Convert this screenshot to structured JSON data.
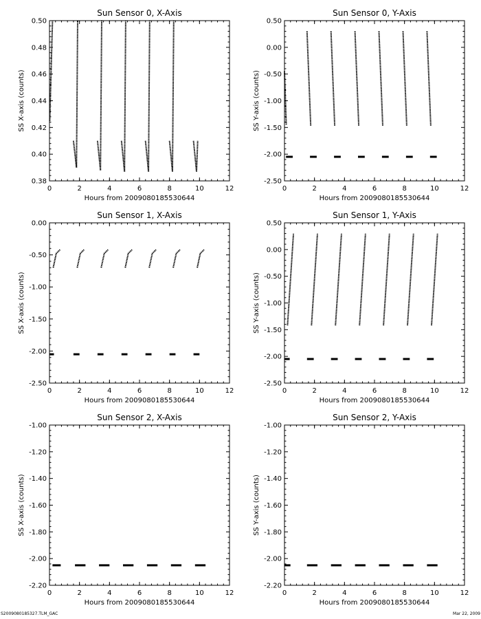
{
  "footer": {
    "left": "S2009080185327.TLM_GAC",
    "right": "Mar 22, 2009"
  },
  "chart_data": [
    {
      "type": "scatter",
      "title": "Sun Sensor 0, X-Axis",
      "xlabel": "Hours from 2009080185530644",
      "ylabel": "SS X-axis (counts)",
      "xlim": [
        0,
        12
      ],
      "ylim": [
        0.38,
        0.5
      ],
      "xticks": [
        0,
        2,
        4,
        6,
        8,
        10,
        12
      ],
      "yticks": [
        0.38,
        0.4,
        0.42,
        0.44,
        0.46,
        0.48,
        0.5
      ],
      "ytick_labels": [
        "0.38",
        "0.40",
        "0.42",
        "0.44",
        "0.46",
        "0.48",
        "0.50"
      ],
      "series": [
        {
          "x": [
            0.02,
            0.2
          ],
          "y": [
            0.425,
            0.5
          ]
        },
        {
          "x": [
            1.6,
            1.8
          ],
          "y": [
            0.41,
            0.39
          ]
        },
        {
          "x": [
            1.8,
            1.88
          ],
          "y": [
            0.39,
            0.5
          ]
        },
        {
          "x": [
            3.2,
            3.4
          ],
          "y": [
            0.41,
            0.388
          ]
        },
        {
          "x": [
            3.4,
            3.48
          ],
          "y": [
            0.388,
            0.5
          ]
        },
        {
          "x": [
            4.8,
            5.0
          ],
          "y": [
            0.41,
            0.387
          ]
        },
        {
          "x": [
            5.0,
            5.08
          ],
          "y": [
            0.387,
            0.5
          ]
        },
        {
          "x": [
            6.4,
            6.6
          ],
          "y": [
            0.41,
            0.387
          ]
        },
        {
          "x": [
            6.6,
            6.68
          ],
          "y": [
            0.387,
            0.5
          ]
        },
        {
          "x": [
            8.0,
            8.2
          ],
          "y": [
            0.41,
            0.387
          ]
        },
        {
          "x": [
            8.2,
            8.28
          ],
          "y": [
            0.387,
            0.5
          ]
        },
        {
          "x": [
            9.6,
            9.8
          ],
          "y": [
            0.41,
            0.387
          ]
        },
        {
          "x": [
            9.8,
            9.88
          ],
          "y": [
            0.387,
            0.41
          ]
        }
      ]
    },
    {
      "type": "scatter",
      "title": "Sun Sensor 0, Y-Axis",
      "xlabel": "Hours from 2009080185530644",
      "ylabel": "SS Y-axis (counts)",
      "xlim": [
        0,
        12
      ],
      "ylim": [
        -2.5,
        0.5
      ],
      "xticks": [
        0,
        2,
        4,
        6,
        8,
        10,
        12
      ],
      "yticks": [
        -2.5,
        -2.0,
        -1.5,
        -1.0,
        -0.5,
        0.0,
        0.5
      ],
      "ytick_labels": [
        "-2.50",
        "-2.00",
        "-1.50",
        "-1.00",
        "-0.50",
        "0.00",
        "0.50"
      ],
      "series": [
        {
          "x": [
            0.0,
            0.12
          ],
          "y": [
            -0.45,
            -1.45
          ]
        },
        {
          "x": [
            1.5,
            1.75
          ],
          "y": [
            0.3,
            -1.47
          ]
        },
        {
          "x": [
            3.1,
            3.35
          ],
          "y": [
            0.3,
            -1.47
          ]
        },
        {
          "x": [
            4.7,
            4.95
          ],
          "y": [
            0.3,
            -1.47
          ]
        },
        {
          "x": [
            6.3,
            6.55
          ],
          "y": [
            0.3,
            -1.47
          ]
        },
        {
          "x": [
            7.9,
            8.15
          ],
          "y": [
            0.3,
            -1.47
          ]
        },
        {
          "x": [
            9.5,
            9.75
          ],
          "y": [
            0.3,
            -1.47
          ]
        },
        {
          "x": [
            0.1,
            0.55
          ],
          "y": [
            -2.05,
            -2.05
          ]
        },
        {
          "x": [
            1.7,
            2.15
          ],
          "y": [
            -2.05,
            -2.05
          ]
        },
        {
          "x": [
            3.3,
            3.75
          ],
          "y": [
            -2.05,
            -2.05
          ]
        },
        {
          "x": [
            4.9,
            5.35
          ],
          "y": [
            -2.05,
            -2.05
          ]
        },
        {
          "x": [
            6.5,
            6.95
          ],
          "y": [
            -2.05,
            -2.05
          ]
        },
        {
          "x": [
            8.1,
            8.55
          ],
          "y": [
            -2.05,
            -2.05
          ]
        },
        {
          "x": [
            9.7,
            10.15
          ],
          "y": [
            -2.05,
            -2.05
          ]
        }
      ]
    },
    {
      "type": "scatter",
      "title": "Sun Sensor 1, X-Axis",
      "xlabel": "Hours from 2009080185530644",
      "ylabel": "SS X-axis (counts)",
      "xlim": [
        0,
        12
      ],
      "ylim": [
        -2.5,
        0.0
      ],
      "xticks": [
        0,
        2,
        4,
        6,
        8,
        10,
        12
      ],
      "yticks": [
        -2.5,
        -2.0,
        -1.5,
        -1.0,
        -0.5,
        0.0
      ],
      "ytick_labels": [
        "-2.50",
        "-2.00",
        "-1.50",
        "-1.00",
        "-0.50",
        "0.00"
      ],
      "series": [
        {
          "x": [
            0.25,
            0.45,
            0.7
          ],
          "y": [
            -0.7,
            -0.48,
            -0.42
          ]
        },
        {
          "x": [
            1.85,
            2.05,
            2.3
          ],
          "y": [
            -0.7,
            -0.48,
            -0.42
          ]
        },
        {
          "x": [
            3.45,
            3.65,
            3.9
          ],
          "y": [
            -0.7,
            -0.48,
            -0.42
          ]
        },
        {
          "x": [
            5.05,
            5.25,
            5.5
          ],
          "y": [
            -0.7,
            -0.48,
            -0.42
          ]
        },
        {
          "x": [
            6.65,
            6.85,
            7.1
          ],
          "y": [
            -0.7,
            -0.48,
            -0.42
          ]
        },
        {
          "x": [
            8.25,
            8.45,
            8.7
          ],
          "y": [
            -0.7,
            -0.48,
            -0.42
          ]
        },
        {
          "x": [
            9.85,
            10.05,
            10.3
          ],
          "y": [
            -0.7,
            -0.48,
            -0.42
          ]
        },
        {
          "x": [
            0.0,
            0.3
          ],
          "y": [
            -2.05,
            -2.05
          ]
        },
        {
          "x": [
            1.6,
            2.0
          ],
          "y": [
            -2.05,
            -2.05
          ]
        },
        {
          "x": [
            3.2,
            3.6
          ],
          "y": [
            -2.05,
            -2.05
          ]
        },
        {
          "x": [
            4.8,
            5.2
          ],
          "y": [
            -2.05,
            -2.05
          ]
        },
        {
          "x": [
            6.4,
            6.8
          ],
          "y": [
            -2.05,
            -2.05
          ]
        },
        {
          "x": [
            8.0,
            8.4
          ],
          "y": [
            -2.05,
            -2.05
          ]
        },
        {
          "x": [
            9.6,
            10.0
          ],
          "y": [
            -2.05,
            -2.05
          ]
        }
      ]
    },
    {
      "type": "scatter",
      "title": "Sun Sensor 1, Y-Axis",
      "xlabel": "Hours from 2009080185530644",
      "ylabel": "SS Y-axis (counts)",
      "xlim": [
        0,
        12
      ],
      "ylim": [
        -2.5,
        0.5
      ],
      "xticks": [
        0,
        2,
        4,
        6,
        8,
        10,
        12
      ],
      "yticks": [
        -2.5,
        -2.0,
        -1.5,
        -1.0,
        -0.5,
        0.0,
        0.5
      ],
      "ytick_labels": [
        "-2.50",
        "-2.00",
        "-1.50",
        "-1.00",
        "-0.50",
        "0.00",
        "0.50"
      ],
      "series": [
        {
          "x": [
            0.2,
            0.6
          ],
          "y": [
            -1.42,
            0.3
          ]
        },
        {
          "x": [
            1.8,
            2.2
          ],
          "y": [
            -1.42,
            0.3
          ]
        },
        {
          "x": [
            3.4,
            3.8
          ],
          "y": [
            -1.42,
            0.3
          ]
        },
        {
          "x": [
            5.0,
            5.4
          ],
          "y": [
            -1.42,
            0.3
          ]
        },
        {
          "x": [
            6.6,
            7.0
          ],
          "y": [
            -1.42,
            0.3
          ]
        },
        {
          "x": [
            8.2,
            8.6
          ],
          "y": [
            -1.42,
            0.3
          ]
        },
        {
          "x": [
            9.8,
            10.2
          ],
          "y": [
            -1.42,
            0.3
          ]
        },
        {
          "x": [
            0.0,
            0.35
          ],
          "y": [
            -2.05,
            -2.05
          ]
        },
        {
          "x": [
            1.5,
            1.95
          ],
          "y": [
            -2.05,
            -2.05
          ]
        },
        {
          "x": [
            3.1,
            3.55
          ],
          "y": [
            -2.05,
            -2.05
          ]
        },
        {
          "x": [
            4.7,
            5.15
          ],
          "y": [
            -2.05,
            -2.05
          ]
        },
        {
          "x": [
            6.3,
            6.75
          ],
          "y": [
            -2.05,
            -2.05
          ]
        },
        {
          "x": [
            7.9,
            8.35
          ],
          "y": [
            -2.05,
            -2.05
          ]
        },
        {
          "x": [
            9.5,
            9.95
          ],
          "y": [
            -2.05,
            -2.05
          ]
        }
      ]
    },
    {
      "type": "scatter",
      "title": "Sun Sensor 2, X-Axis",
      "xlabel": "Hours from 2009080185530644",
      "ylabel": "SS X-axis (counts)",
      "xlim": [
        0,
        12
      ],
      "ylim": [
        -2.2,
        -1.0
      ],
      "xticks": [
        0,
        2,
        4,
        6,
        8,
        10,
        12
      ],
      "yticks": [
        -2.2,
        -2.0,
        -1.8,
        -1.6,
        -1.4,
        -1.2,
        -1.0
      ],
      "ytick_labels": [
        "-2.20",
        "-2.00",
        "-1.80",
        "-1.60",
        "-1.40",
        "-1.20",
        "-1.00"
      ],
      "series": [
        {
          "x": [
            0.2,
            0.75
          ],
          "y": [
            -2.05,
            -2.05
          ]
        },
        {
          "x": [
            1.7,
            2.4
          ],
          "y": [
            -2.05,
            -2.05
          ]
        },
        {
          "x": [
            3.3,
            4.0
          ],
          "y": [
            -2.05,
            -2.05
          ]
        },
        {
          "x": [
            4.9,
            5.6
          ],
          "y": [
            -2.05,
            -2.05
          ]
        },
        {
          "x": [
            6.5,
            7.2
          ],
          "y": [
            -2.05,
            -2.05
          ]
        },
        {
          "x": [
            8.1,
            8.8
          ],
          "y": [
            -2.05,
            -2.05
          ]
        },
        {
          "x": [
            9.7,
            10.4
          ],
          "y": [
            -2.05,
            -2.05
          ]
        }
      ]
    },
    {
      "type": "scatter",
      "title": "Sun Sensor 2, Y-Axis",
      "xlabel": "Hours from 2009080185530644",
      "ylabel": "SS Y-axis (counts)",
      "xlim": [
        0,
        12
      ],
      "ylim": [
        -2.2,
        -1.0
      ],
      "xticks": [
        0,
        2,
        4,
        6,
        8,
        10,
        12
      ],
      "yticks": [
        -2.2,
        -2.0,
        -1.8,
        -1.6,
        -1.4,
        -1.2,
        -1.0
      ],
      "ytick_labels": [
        "-2.20",
        "-2.00",
        "-1.80",
        "-1.60",
        "-1.40",
        "-1.20",
        "-1.00"
      ],
      "series": [
        {
          "x": [
            0.0,
            0.4
          ],
          "y": [
            -2.05,
            -2.05
          ]
        },
        {
          "x": [
            1.5,
            2.2
          ],
          "y": [
            -2.05,
            -2.05
          ]
        },
        {
          "x": [
            3.1,
            3.8
          ],
          "y": [
            -2.05,
            -2.05
          ]
        },
        {
          "x": [
            4.7,
            5.4
          ],
          "y": [
            -2.05,
            -2.05
          ]
        },
        {
          "x": [
            6.3,
            7.0
          ],
          "y": [
            -2.05,
            -2.05
          ]
        },
        {
          "x": [
            7.9,
            8.6
          ],
          "y": [
            -2.05,
            -2.05
          ]
        },
        {
          "x": [
            9.5,
            10.2
          ],
          "y": [
            -2.05,
            -2.05
          ]
        }
      ]
    }
  ]
}
